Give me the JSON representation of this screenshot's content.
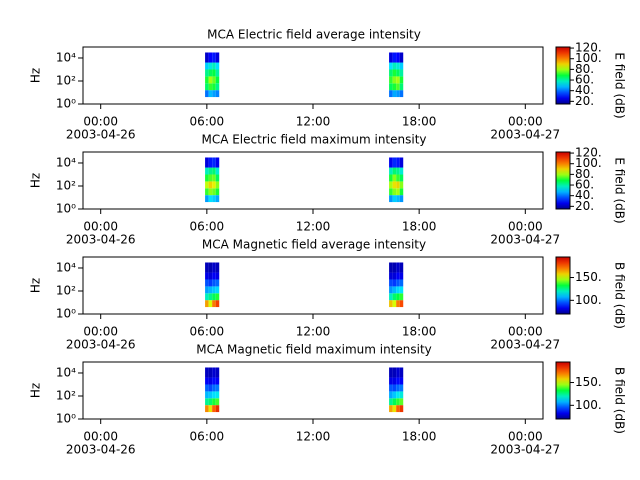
{
  "chart_data": [
    {
      "type": "spectrogram",
      "title": "MCA  Electric field average intensity",
      "ylabel": "Hz",
      "colorbar_label": "E field (dB)",
      "log_y": true,
      "x_start": [
        5.9,
        6.1,
        6.3,
        6.5,
        16.3,
        16.5,
        16.7,
        16.9
      ],
      "x_end": [
        6.1,
        6.3,
        6.5,
        6.7,
        16.5,
        16.7,
        16.9,
        17.1
      ],
      "ybins": [
        4,
        16,
        63,
        250,
        1000,
        4000,
        30000
      ],
      "z": [
        [
          40,
          65,
          70,
          62,
          50,
          22
        ],
        [
          48,
          72,
          80,
          66,
          55,
          28
        ],
        [
          45,
          70,
          76,
          68,
          58,
          30
        ],
        [
          42,
          62,
          68,
          60,
          52,
          24
        ],
        [
          40,
          66,
          72,
          64,
          52,
          24
        ],
        [
          46,
          70,
          78,
          70,
          58,
          30
        ],
        [
          44,
          74,
          80,
          66,
          56,
          28
        ],
        [
          40,
          64,
          70,
          60,
          50,
          22
        ]
      ],
      "xlim": [
        -1,
        25
      ],
      "xticks": [
        {
          "value": 0,
          "label": "00:00"
        },
        {
          "value": 6,
          "label": "06:00"
        },
        {
          "value": 12,
          "label": "12:00"
        },
        {
          "value": 18,
          "label": "18:00"
        },
        {
          "value": 24,
          "label": "00:00"
        }
      ],
      "date_labels": [
        {
          "value": 0,
          "label": "2003-04-26"
        },
        {
          "value": 24,
          "label": "2003-04-27"
        }
      ],
      "ylim": [
        1,
        90000
      ],
      "yticks": [
        {
          "value": 1,
          "label": "10⁰"
        },
        {
          "value": 100,
          "label": "10²"
        },
        {
          "value": 10000,
          "label": "10⁴"
        }
      ],
      "zlim": [
        15,
        122
      ],
      "zticks": [
        {
          "value": 20,
          "label": "20."
        },
        {
          "value": 40,
          "label": "40."
        },
        {
          "value": 60,
          "label": "60."
        },
        {
          "value": 80,
          "label": "80."
        },
        {
          "value": 100,
          "label": "100."
        },
        {
          "value": 120,
          "label": "120."
        }
      ]
    },
    {
      "type": "spectrogram",
      "title": "MCA  Electric field maximum intensity",
      "ylabel": "Hz",
      "colorbar_label": "E field (dB)",
      "log_y": true,
      "x_start": [
        5.9,
        6.1,
        6.3,
        6.5,
        16.3,
        16.5,
        16.7,
        16.9
      ],
      "x_end": [
        6.1,
        6.3,
        6.5,
        6.7,
        16.5,
        16.7,
        16.9,
        17.1
      ],
      "ybins": [
        4,
        16,
        63,
        250,
        1000,
        4000,
        30000
      ],
      "z": [
        [
          45,
          72,
          82,
          70,
          58,
          24
        ],
        [
          52,
          78,
          90,
          74,
          62,
          30
        ],
        [
          50,
          76,
          86,
          76,
          64,
          32
        ],
        [
          46,
          70,
          78,
          66,
          56,
          26
        ],
        [
          44,
          72,
          80,
          70,
          58,
          26
        ],
        [
          50,
          78,
          88,
          78,
          64,
          32
        ],
        [
          48,
          80,
          90,
          72,
          62,
          30
        ],
        [
          44,
          70,
          78,
          66,
          56,
          24
        ]
      ],
      "xlim": [
        -1,
        25
      ],
      "xticks": [
        {
          "value": 0,
          "label": "00:00"
        },
        {
          "value": 6,
          "label": "06:00"
        },
        {
          "value": 12,
          "label": "12:00"
        },
        {
          "value": 18,
          "label": "18:00"
        },
        {
          "value": 24,
          "label": "00:00"
        }
      ],
      "date_labels": [
        {
          "value": 0,
          "label": "2003-04-26"
        },
        {
          "value": 24,
          "label": "2003-04-27"
        }
      ],
      "ylim": [
        1,
        90000
      ],
      "yticks": [
        {
          "value": 1,
          "label": "10⁰"
        },
        {
          "value": 100,
          "label": "10²"
        },
        {
          "value": 10000,
          "label": "10⁴"
        }
      ],
      "zlim": [
        15,
        122
      ],
      "zticks": [
        {
          "value": 20,
          "label": "20."
        },
        {
          "value": 40,
          "label": "40."
        },
        {
          "value": 60,
          "label": "60."
        },
        {
          "value": 80,
          "label": "80."
        },
        {
          "value": 100,
          "label": "100."
        },
        {
          "value": 120,
          "label": "120."
        }
      ]
    },
    {
      "type": "spectrogram",
      "title": "MCA  Magnetic field average intensity",
      "ylabel": "Hz",
      "colorbar_label": "B field (dB)",
      "log_y": true,
      "x_start": [
        5.9,
        6.1,
        6.3,
        6.5,
        16.3,
        16.5,
        16.7,
        16.9
      ],
      "x_end": [
        6.1,
        6.3,
        6.5,
        6.7,
        16.5,
        16.7,
        16.9,
        17.1
      ],
      "ybins": [
        4,
        16,
        63,
        250,
        1000,
        4000,
        30000
      ],
      "z": [
        [
          165,
          120,
          105,
          95,
          82,
          76
        ],
        [
          150,
          125,
          108,
          92,
          80,
          75
        ],
        [
          170,
          130,
          110,
          96,
          84,
          78
        ],
        [
          180,
          135,
          112,
          98,
          82,
          76
        ],
        [
          160,
          120,
          104,
          94,
          80,
          75
        ],
        [
          150,
          128,
          108,
          92,
          80,
          75
        ],
        [
          170,
          132,
          112,
          96,
          84,
          78
        ],
        [
          178,
          136,
          114,
          98,
          82,
          76
        ]
      ],
      "xlim": [
        -1,
        25
      ],
      "xticks": [
        {
          "value": 0,
          "label": "00:00"
        },
        {
          "value": 6,
          "label": "06:00"
        },
        {
          "value": 12,
          "label": "12:00"
        },
        {
          "value": 18,
          "label": "18:00"
        },
        {
          "value": 24,
          "label": "00:00"
        }
      ],
      "date_labels": [
        {
          "value": 0,
          "label": "2003-04-26"
        },
        {
          "value": 24,
          "label": "2003-04-27"
        }
      ],
      "ylim": [
        1,
        90000
      ],
      "yticks": [
        {
          "value": 1,
          "label": "10⁰"
        },
        {
          "value": 100,
          "label": "10²"
        },
        {
          "value": 10000,
          "label": "10⁴"
        }
      ],
      "zlim": [
        70,
        195
      ],
      "zticks": [
        {
          "value": 100,
          "label": "100."
        },
        {
          "value": 150,
          "label": "150."
        }
      ]
    },
    {
      "type": "spectrogram",
      "title": "MCA  Magnetic field maximum intensity",
      "ylabel": "Hz",
      "colorbar_label": "B field (dB)",
      "log_y": true,
      "x_start": [
        5.9,
        6.1,
        6.3,
        6.5,
        16.3,
        16.5,
        16.7,
        16.9
      ],
      "x_end": [
        6.1,
        6.3,
        6.5,
        6.7,
        16.5,
        16.7,
        16.9,
        17.1
      ],
      "ybins": [
        4,
        16,
        63,
        250,
        1000,
        4000,
        30000
      ],
      "z": [
        [
          168,
          124,
          108,
          97,
          84,
          77
        ],
        [
          155,
          128,
          110,
          94,
          82,
          76
        ],
        [
          174,
          134,
          113,
          98,
          86,
          79
        ],
        [
          184,
          138,
          115,
          100,
          84,
          77
        ],
        [
          164,
          124,
          106,
          96,
          82,
          76
        ],
        [
          155,
          130,
          110,
          94,
          82,
          76
        ],
        [
          174,
          136,
          115,
          98,
          86,
          79
        ],
        [
          182,
          140,
          117,
          100,
          84,
          77
        ]
      ],
      "xlim": [
        -1,
        25
      ],
      "xticks": [
        {
          "value": 0,
          "label": "00:00"
        },
        {
          "value": 6,
          "label": "06:00"
        },
        {
          "value": 12,
          "label": "12:00"
        },
        {
          "value": 18,
          "label": "18:00"
        },
        {
          "value": 24,
          "label": "00:00"
        }
      ],
      "date_labels": [
        {
          "value": 0,
          "label": "2003-04-26"
        },
        {
          "value": 24,
          "label": "2003-04-27"
        }
      ],
      "ylim": [
        1,
        90000
      ],
      "yticks": [
        {
          "value": 1,
          "label": "10⁰"
        },
        {
          "value": 100,
          "label": "10²"
        },
        {
          "value": 10000,
          "label": "10⁴"
        }
      ],
      "zlim": [
        70,
        195
      ],
      "zticks": [
        {
          "value": 100,
          "label": "100."
        },
        {
          "value": 150,
          "label": "150."
        }
      ]
    }
  ]
}
